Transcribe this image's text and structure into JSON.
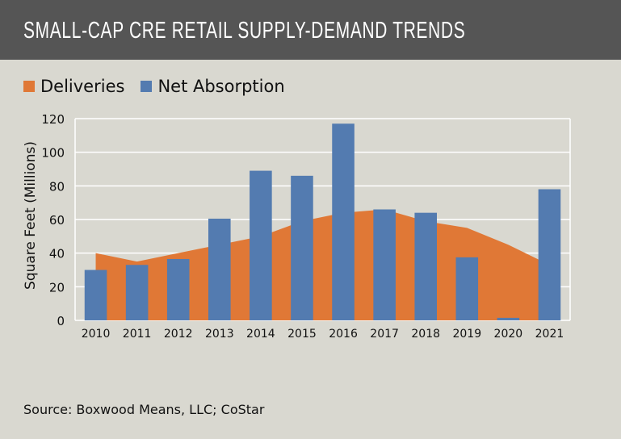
{
  "chart_data": {
    "type": "bar",
    "title": "SMALL-CAP CRE RETAIL SUPPLY-DEMAND TRENDS",
    "ylabel": "Square Feet (Millions)",
    "xlabel": "",
    "ylim": [
      0,
      120
    ],
    "yticks": [
      0,
      20,
      40,
      60,
      80,
      100,
      120
    ],
    "grid": true,
    "legend_placement": "top-left",
    "categories": [
      "2010",
      "2011",
      "2012",
      "2013",
      "2014",
      "2015",
      "2016",
      "2017",
      "2018",
      "2019",
      "2020",
      "2021"
    ],
    "series": [
      {
        "name": "Deliveries",
        "kind": "area",
        "color": "#e07836",
        "values": [
          40,
          35,
          40,
          45,
          50,
          59,
          64,
          66,
          59,
          55,
          45,
          33
        ]
      },
      {
        "name": "Net Absorption",
        "kind": "bar",
        "color": "#537bb0",
        "values": [
          30,
          33,
          36.5,
          60.5,
          89,
          86,
          117,
          66,
          64,
          37.5,
          1.5,
          78
        ]
      }
    ],
    "source": "Source: Boxwood Means, LLC; CoStar"
  }
}
